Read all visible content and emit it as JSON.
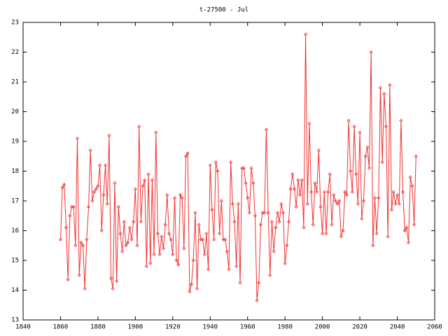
{
  "chart_data": {
    "type": "line",
    "title": "t-27500 - Jul",
    "x": [
      1860,
      1861,
      1862,
      1863,
      1864,
      1865,
      1866,
      1867,
      1868,
      1869,
      1870,
      1871,
      1872,
      1873,
      1874,
      1875,
      1876,
      1877,
      1878,
      1879,
      1880,
      1881,
      1882,
      1883,
      1884,
      1885,
      1886,
      1887,
      1888,
      1889,
      1890,
      1891,
      1892,
      1893,
      1894,
      1895,
      1896,
      1897,
      1898,
      1899,
      1900,
      1901,
      1902,
      1903,
      1904,
      1905,
      1906,
      1907,
      1908,
      1909,
      1910,
      1911,
      1912,
      1913,
      1914,
      1915,
      1916,
      1917,
      1918,
      1919,
      1920,
      1921,
      1922,
      1923,
      1924,
      1925,
      1926,
      1927,
      1928,
      1929,
      1930,
      1931,
      1932,
      1933,
      1934,
      1935,
      1936,
      1937,
      1938,
      1939,
      1940,
      1941,
      1942,
      1943,
      1944,
      1945,
      1946,
      1947,
      1948,
      1949,
      1950,
      1951,
      1952,
      1953,
      1954,
      1955,
      1956,
      1957,
      1958,
      1959,
      1960,
      1961,
      1962,
      1963,
      1964,
      1965,
      1966,
      1967,
      1968,
      1969,
      1970,
      1971,
      1972,
      1973,
      1974,
      1975,
      1976,
      1977,
      1978,
      1979,
      1980,
      1981,
      1982,
      1983,
      1984,
      1985,
      1986,
      1987,
      1988,
      1989,
      1990,
      1991,
      1992,
      1993,
      1994,
      1995,
      1996,
      1997,
      1998,
      1999,
      2000,
      2001,
      2002,
      2003,
      2004,
      2005,
      2006,
      2007,
      2008,
      2009,
      2010,
      2011,
      2012,
      2013,
      2014,
      2015,
      2016,
      2017,
      2018,
      2019,
      2020,
      2021,
      2022,
      2023,
      2024,
      2025,
      2026,
      2027,
      2028,
      2029,
      2030,
      2031,
      2032,
      2033,
      2034,
      2035,
      2036,
      2037,
      2038,
      2039,
      2040,
      2041,
      2042,
      2043,
      2044,
      2045,
      2046,
      2047,
      2048,
      2049,
      2050
    ],
    "values": [
      15.7,
      17.45,
      17.55,
      16.1,
      14.35,
      16.5,
      16.8,
      16.8,
      15.5,
      19.1,
      14.5,
      15.6,
      15.5,
      14.05,
      15.7,
      16.8,
      18.7,
      17.0,
      17.3,
      17.4,
      17.5,
      18.2,
      16.0,
      17.2,
      18.2,
      16.9,
      19.2,
      14.4,
      14.05,
      17.6,
      14.3,
      16.8,
      15.9,
      15.3,
      16.3,
      15.5,
      15.6,
      16.1,
      15.7,
      16.3,
      17.4,
      15.5,
      19.5,
      16.3,
      17.5,
      17.7,
      14.8,
      17.9,
      14.9,
      17.7,
      15.2,
      19.3,
      15.9,
      15.2,
      15.8,
      15.4,
      16.2,
      17.2,
      15.9,
      15.7,
      15.2,
      17.1,
      15.0,
      14.85,
      17.2,
      17.1,
      15.4,
      18.5,
      18.6,
      13.95,
      14.2,
      15.0,
      16.6,
      14.05,
      16.2,
      15.7,
      15.7,
      15.2,
      15.9,
      14.7,
      18.2,
      16.7,
      15.7,
      18.3,
      18.0,
      15.9,
      17.0,
      15.7,
      15.7,
      15.3,
      14.7,
      18.3,
      16.9,
      16.3,
      14.8,
      16.9,
      14.25,
      18.1,
      18.1,
      17.6,
      17.1,
      16.6,
      18.1,
      17.6,
      16.5,
      13.65,
      14.25,
      16.2,
      16.6,
      16.6,
      19.4,
      16.6,
      14.5,
      16.3,
      15.3,
      16.1,
      16.6,
      16.3,
      16.9,
      16.6,
      14.9,
      15.5,
      16.3,
      17.4,
      17.9,
      17.4,
      16.8,
      17.7,
      17.2,
      17.7,
      16.1,
      22.6,
      16.9,
      19.6,
      17.3,
      16.2,
      17.6,
      17.3,
      18.7,
      16.8,
      15.9,
      17.3,
      15.9,
      17.3,
      17.9,
      16.2,
      17.2,
      17.0,
      16.9,
      17.0,
      15.8,
      16.0,
      17.3,
      17.2,
      19.7,
      18.0,
      17.3,
      19.5,
      17.9,
      16.9,
      19.3,
      16.4,
      17.0,
      18.5,
      18.8,
      18.1,
      22.0,
      15.5,
      17.1,
      15.9,
      17.1,
      20.8,
      18.3,
      20.6,
      19.5,
      15.8,
      20.9,
      16.7,
      17.3,
      16.9,
      17.2,
      16.9,
      19.7,
      17.3,
      16.0,
      16.1,
      15.6,
      17.8,
      17.5,
      16.2,
      18.5
    ],
    "color": "#f03232",
    "xlim": [
      1840,
      2060
    ],
    "xticks": [
      1840,
      1860,
      1880,
      1900,
      1920,
      1940,
      1960,
      1980,
      2000,
      2020,
      2040,
      2060
    ],
    "ylim": [
      13,
      23
    ],
    "yticks": [
      13,
      14,
      15,
      16,
      17,
      18,
      19,
      20,
      21,
      22,
      23
    ]
  }
}
